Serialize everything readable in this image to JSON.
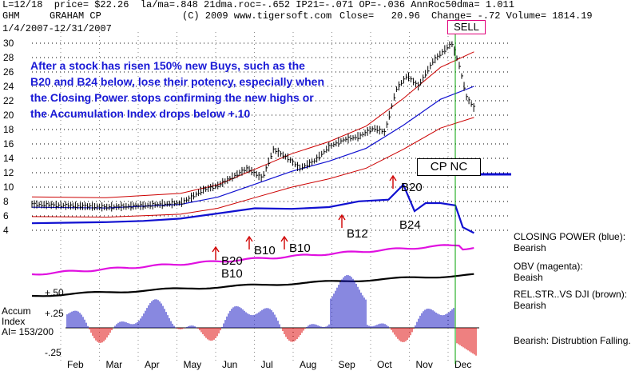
{
  "header": {
    "line1": "L=12/18  price= $22.26  la/ma=.848 21dma.roc=-.652 IP21=-.071 OP=-.036 AnnRoc50dma= 1.011",
    "ticker": "GHM",
    "company": "GRAHAM CP",
    "copyright": "(C) 2009 www.tigersoft.com",
    "close": "Close=   20.96",
    "change": "Change= -.72 Volume= 1814.19",
    "date_range": "1/4/2007-12/31/2007"
  },
  "annotation": "After a stock has risen 150% new Buys,  such as the B20 and B24 below, lose their potency, especially when the Closing Power stops confirming the new highs or the Accumulation Index drops below +.10",
  "signals": {
    "sell": "SELL",
    "cp_nc": "CP NC",
    "b20_top": "B20",
    "b24": "B24",
    "b12": "B12",
    "b10_a": "B10",
    "b10_b": "B10",
    "b20_low": "B20",
    "b10_low": "B10"
  },
  "right_labels": {
    "closing_power": "CLOSING POWER (blue):",
    "closing_power_status": "Bearish",
    "obv": "OBV (magenta):",
    "obv_status": "Beaish",
    "relstr": "REL.STR..VS DJI (brown):",
    "relstr_status": "Bearish",
    "distribution": "Bearish:  Distrubtion Falling."
  },
  "left_labels": {
    "plus50": "+.50",
    "plus25": "+.25",
    "accum1": "Accum",
    "accum2": "Index",
    "ai": "AI= 153/200",
    "minus25": "-.25"
  },
  "colors": {
    "price": "#000000",
    "band": "#cc0000",
    "ma": "#1010d0",
    "closing_power": "#1010d0",
    "obv": "#e010e0",
    "relstr": "#000000",
    "accum_pos": "#1010c0",
    "accum_neg": "#dd0000",
    "sell_box_border": "#e0007a",
    "vertical_green": "#00a000"
  },
  "chart_data": {
    "type": "line",
    "title": "GRAHAM CP",
    "x_months": [
      "Feb",
      "Mar",
      "Apr",
      "May",
      "Jun",
      "Jul",
      "Aug",
      "Sep",
      "Oct",
      "Nov",
      "Dec"
    ],
    "y_ticks": [
      30,
      28,
      26,
      24,
      22,
      20,
      18,
      16,
      14,
      12,
      10,
      8,
      6,
      4
    ],
    "ylim": [
      3,
      31
    ],
    "price_series": [
      {
        "t": 0.0,
        "v": 7.6
      },
      {
        "t": 0.5,
        "v": 7.5
      },
      {
        "t": 1.0,
        "v": 7.4
      },
      {
        "t": 1.5,
        "v": 7.3
      },
      {
        "t": 2.0,
        "v": 7.2
      },
      {
        "t": 2.5,
        "v": 7.3
      },
      {
        "t": 3.0,
        "v": 7.4
      },
      {
        "t": 3.5,
        "v": 7.6
      },
      {
        "t": 4.0,
        "v": 7.8
      },
      {
        "t": 4.3,
        "v": 8.6
      },
      {
        "t": 4.6,
        "v": 9.6
      },
      {
        "t": 5.0,
        "v": 10.2
      },
      {
        "t": 5.4,
        "v": 11.4
      },
      {
        "t": 5.8,
        "v": 12.6
      },
      {
        "t": 6.2,
        "v": 11.2
      },
      {
        "t": 6.5,
        "v": 15.2
      },
      {
        "t": 6.9,
        "v": 14.0
      },
      {
        "t": 7.2,
        "v": 12.6
      },
      {
        "t": 7.6,
        "v": 13.6
      },
      {
        "t": 8.0,
        "v": 15.6
      },
      {
        "t": 8.4,
        "v": 16.6
      },
      {
        "t": 8.8,
        "v": 17.0
      },
      {
        "t": 9.2,
        "v": 18.2
      },
      {
        "t": 9.5,
        "v": 17.6
      },
      {
        "t": 9.8,
        "v": 23.5
      },
      {
        "t": 10.1,
        "v": 25.5
      },
      {
        "t": 10.4,
        "v": 24.0
      },
      {
        "t": 10.8,
        "v": 27.5
      },
      {
        "t": 11.1,
        "v": 29.0
      },
      {
        "t": 11.3,
        "v": 30.0
      },
      {
        "t": 11.5,
        "v": 27.0
      },
      {
        "t": 11.7,
        "v": 22.5
      },
      {
        "t": 11.9,
        "v": 21.0
      }
    ],
    "ma_series": [
      {
        "t": 0.0,
        "v": 7.2
      },
      {
        "t": 2.0,
        "v": 7.1
      },
      {
        "t": 4.0,
        "v": 7.6
      },
      {
        "t": 5.0,
        "v": 8.6
      },
      {
        "t": 6.0,
        "v": 10.4
      },
      {
        "t": 7.0,
        "v": 12.2
      },
      {
        "t": 8.0,
        "v": 13.6
      },
      {
        "t": 9.0,
        "v": 15.4
      },
      {
        "t": 10.0,
        "v": 18.6
      },
      {
        "t": 11.0,
        "v": 22.2
      },
      {
        "t": 11.9,
        "v": 24.0
      }
    ],
    "closing_power_series": [
      {
        "t": 0.0,
        "v": 3.5
      },
      {
        "t": 1.0,
        "v": 3.6
      },
      {
        "t": 2.0,
        "v": 3.7
      },
      {
        "t": 3.0,
        "v": 3.9
      },
      {
        "t": 4.0,
        "v": 4.3
      },
      {
        "t": 5.0,
        "v": 5.2
      },
      {
        "t": 6.0,
        "v": 6.1
      },
      {
        "t": 7.0,
        "v": 6.0
      },
      {
        "t": 8.0,
        "v": 6.3
      },
      {
        "t": 8.8,
        "v": 7.3
      },
      {
        "t": 9.6,
        "v": 7.6
      },
      {
        "t": 10.0,
        "v": 10.2
      },
      {
        "t": 10.3,
        "v": 5.6
      },
      {
        "t": 10.6,
        "v": 7.0
      },
      {
        "t": 11.0,
        "v": 7.0
      },
      {
        "t": 11.4,
        "v": 6.6
      },
      {
        "t": 11.6,
        "v": 2.8
      },
      {
        "t": 11.9,
        "v": 1.8
      }
    ],
    "months_x_positions_note": "",
    "accum_index": {
      "levels": [
        "+.50",
        "+.25",
        "-.25"
      ],
      "ai": "153/200"
    }
  }
}
